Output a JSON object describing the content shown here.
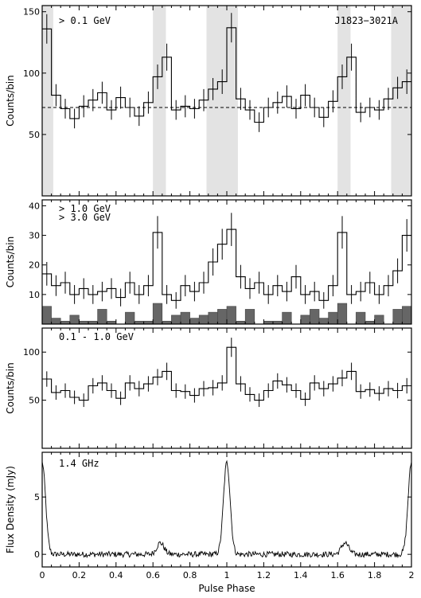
{
  "chart_data": [
    {
      "type": "histogram",
      "panel": 1,
      "ylabel": "Counts/bin",
      "ylim": [
        0,
        155
      ],
      "yticks": [
        50,
        100,
        150
      ],
      "annotation": "> 0.1 GeV",
      "label": "J1823−3021A",
      "reference_level": 72,
      "shaded_phase_ranges": [
        [
          0.0,
          0.06
        ],
        [
          0.6,
          0.67
        ],
        [
          0.89,
          1.06
        ],
        [
          1.6,
          1.67
        ],
        [
          1.89,
          2.0
        ]
      ],
      "phase": [
        0.025,
        0.075,
        0.125,
        0.175,
        0.225,
        0.275,
        0.325,
        0.375,
        0.425,
        0.475,
        0.525,
        0.575,
        0.625,
        0.675,
        0.725,
        0.775,
        0.825,
        0.875,
        0.925,
        0.975,
        1.025,
        1.075,
        1.125,
        1.175,
        1.225,
        1.275,
        1.325,
        1.375,
        1.425,
        1.475,
        1.525,
        1.575,
        1.625,
        1.675,
        1.725,
        1.775,
        1.825,
        1.875,
        1.925,
        1.975
      ],
      "counts": [
        136,
        82,
        71,
        63,
        73,
        78,
        84,
        70,
        80,
        72,
        65,
        76,
        97,
        113,
        70,
        73,
        71,
        78,
        87,
        93,
        137,
        79,
        70,
        60,
        72,
        76,
        81,
        71,
        82,
        72,
        64,
        77,
        97,
        113,
        68,
        72,
        70,
        79,
        88,
        93
      ],
      "errors": [
        12,
        9,
        8,
        8,
        9,
        9,
        9,
        8,
        9,
        8,
        8,
        9,
        10,
        11,
        8,
        9,
        8,
        9,
        9,
        10,
        12,
        9,
        8,
        8,
        8,
        9,
        9,
        8,
        9,
        8,
        8,
        9,
        10,
        11,
        8,
        8,
        8,
        9,
        9,
        10
      ]
    },
    {
      "type": "histogram",
      "panel": 2,
      "ylabel": "Counts/bin",
      "ylim": [
        0,
        42
      ],
      "yticks": [
        10,
        20,
        30,
        40
      ],
      "annotations": [
        "> 1.0 GeV",
        "> 3.0 GeV"
      ],
      "series": [
        {
          "name": "> 1.0 GeV",
          "phase": [
            0.025,
            0.075,
            0.125,
            0.175,
            0.225,
            0.275,
            0.325,
            0.375,
            0.425,
            0.475,
            0.525,
            0.575,
            0.625,
            0.675,
            0.725,
            0.775,
            0.825,
            0.875,
            0.925,
            0.975,
            1.025,
            1.075,
            1.125,
            1.175,
            1.225,
            1.275,
            1.325,
            1.375,
            1.425,
            1.475,
            1.525,
            1.575,
            1.625,
            1.675,
            1.725,
            1.775,
            1.825,
            1.875,
            1.925,
            1.975
          ],
          "counts": [
            17,
            13,
            14,
            10,
            12,
            10,
            11,
            12,
            9,
            14,
            10,
            13,
            31,
            10,
            8,
            13,
            11,
            14,
            21,
            27,
            32,
            16,
            12,
            14,
            10,
            13,
            11,
            16,
            10,
            11,
            8,
            13,
            31,
            10,
            11,
            14,
            10,
            13,
            18,
            30
          ],
          "errors": [
            4,
            3.5,
            3.7,
            3.2,
            3.5,
            3.2,
            3.3,
            3.5,
            3,
            3.7,
            3.2,
            3.6,
            5.5,
            3.2,
            2.8,
            3.6,
            3.3,
            3.7,
            4.6,
            5.2,
            5.6,
            4,
            3.5,
            3.7,
            3.2,
            3.6,
            3.3,
            4,
            3.2,
            3.3,
            2.8,
            3.6,
            5.5,
            3.2,
            3.3,
            3.7,
            3.2,
            3.6,
            4.2,
            5.5
          ]
        },
        {
          "name": "> 3.0 GeV",
          "phase": [
            0.025,
            0.075,
            0.125,
            0.175,
            0.225,
            0.275,
            0.325,
            0.375,
            0.425,
            0.475,
            0.525,
            0.575,
            0.625,
            0.675,
            0.725,
            0.775,
            0.825,
            0.875,
            0.925,
            0.975,
            1.025,
            1.075,
            1.125,
            1.175,
            1.225,
            1.275,
            1.325,
            1.375,
            1.425,
            1.475,
            1.525,
            1.575,
            1.625,
            1.675,
            1.725,
            1.775,
            1.825,
            1.875,
            1.925,
            1.975
          ],
          "counts": [
            6,
            2,
            1,
            3,
            1,
            1,
            5,
            1,
            0,
            4,
            1,
            1,
            7,
            1,
            3,
            4,
            2,
            3,
            4,
            5,
            6,
            1,
            5,
            0,
            1,
            1,
            4,
            0,
            3,
            5,
            2,
            4,
            7,
            0,
            4,
            1,
            3,
            0,
            5,
            6
          ]
        }
      ]
    },
    {
      "type": "histogram",
      "panel": 3,
      "ylabel": "Counts/bin",
      "ylim": [
        0,
        125
      ],
      "yticks": [
        50,
        100
      ],
      "annotation": "0.1 - 1.0 GeV",
      "phase": [
        0.025,
        0.075,
        0.125,
        0.175,
        0.225,
        0.275,
        0.325,
        0.375,
        0.425,
        0.475,
        0.525,
        0.575,
        0.625,
        0.675,
        0.725,
        0.775,
        0.825,
        0.875,
        0.925,
        0.975,
        1.025,
        1.075,
        1.125,
        1.175,
        1.225,
        1.275,
        1.325,
        1.375,
        1.425,
        1.475,
        1.525,
        1.575,
        1.625,
        1.675,
        1.725,
        1.775,
        1.825,
        1.875,
        1.925,
        1.975
      ],
      "counts": [
        72,
        58,
        60,
        53,
        50,
        65,
        68,
        60,
        52,
        68,
        62,
        67,
        74,
        80,
        60,
        59,
        55,
        62,
        63,
        68,
        105,
        67,
        56,
        50,
        60,
        70,
        66,
        60,
        51,
        68,
        62,
        67,
        73,
        80,
        59,
        61,
        57,
        62,
        60,
        65
      ],
      "errors": [
        8,
        7.5,
        7.5,
        7,
        7,
        8,
        8,
        7.5,
        7,
        8,
        8,
        8,
        8.5,
        9,
        7.5,
        7.5,
        7.5,
        8,
        8,
        8,
        10,
        8,
        7.5,
        7,
        7.5,
        8,
        8,
        7.5,
        7,
        8,
        8,
        8,
        8.5,
        9,
        7.5,
        7.5,
        7.5,
        8,
        8,
        8
      ]
    },
    {
      "type": "line",
      "panel": 4,
      "ylabel": "Flux Density (mJy)",
      "xlabel": "Pulse Phase",
      "ylim": [
        -1.1,
        8.9
      ],
      "yticks": [
        0,
        5
      ],
      "xlim": [
        0,
        2
      ],
      "xticks": [
        "0",
        "0.2",
        "0.4",
        "0.6",
        "0.8",
        "1",
        "1.2",
        "1.4",
        "1.6",
        "1.8",
        "2"
      ],
      "annotation": "1.4 GHz",
      "peaks": [
        {
          "phase": 0.0,
          "flux": 8.0,
          "width": 0.018
        },
        {
          "phase": 1.0,
          "flux": 8.0,
          "width": 0.018
        },
        {
          "phase": 2.0,
          "flux": 8.0,
          "width": 0.018
        },
        {
          "phase": 0.64,
          "flux": 1.0,
          "width": 0.02
        },
        {
          "phase": 1.64,
          "flux": 1.0,
          "width": 0.02
        }
      ],
      "noise_amplitude": 0.25
    }
  ]
}
